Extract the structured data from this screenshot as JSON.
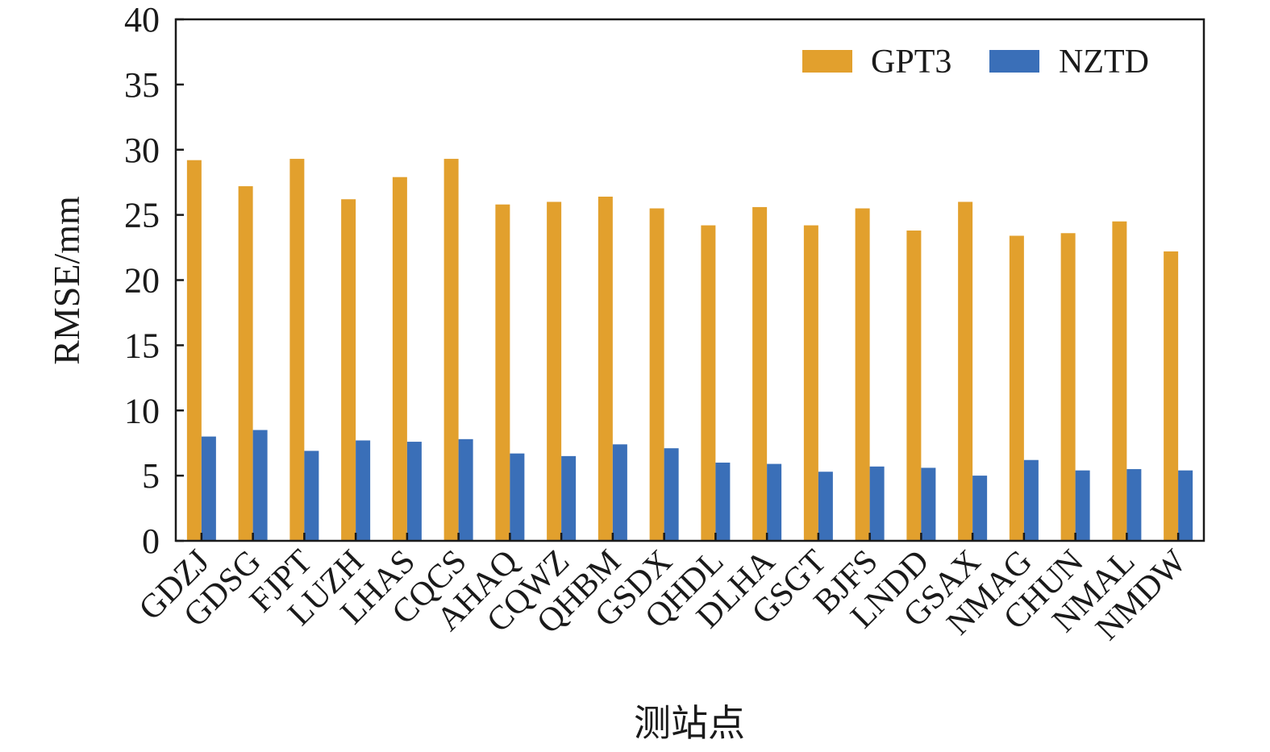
{
  "chart_data": {
    "type": "bar",
    "categories": [
      "GDZJ",
      "GDSG",
      "FJPT",
      "LUZH",
      "LHAS",
      "CQCS",
      "AHAQ",
      "CQWZ",
      "QHBM",
      "GSDX",
      "QHDL",
      "DLHA",
      "GSGT",
      "BJFS",
      "LNDD",
      "GSAX",
      "NMAG",
      "CHUN",
      "NMAL",
      "NMDW"
    ],
    "series": [
      {
        "name": "GPT3",
        "color": "#E2A02D",
        "values": [
          29.2,
          27.2,
          29.3,
          26.2,
          27.9,
          29.3,
          25.8,
          26.0,
          26.4,
          25.5,
          24.2,
          25.6,
          24.2,
          25.5,
          23.8,
          26.0,
          23.4,
          23.6,
          24.5,
          22.2
        ]
      },
      {
        "name": "NZTD",
        "color": "#3A6FB8",
        "values": [
          8.0,
          8.5,
          6.9,
          7.7,
          7.6,
          7.8,
          6.7,
          6.5,
          7.4,
          7.1,
          6.0,
          5.9,
          5.3,
          5.7,
          5.6,
          5.0,
          6.2,
          5.4,
          5.5,
          5.4
        ]
      }
    ],
    "title": "",
    "xlabel": "测站点",
    "ylabel": "RMSE/mm",
    "ylim": [
      0,
      40
    ],
    "yticks": [
      "0",
      "5",
      "10",
      "15",
      "20",
      "25",
      "30",
      "35",
      "40"
    ],
    "grid": false,
    "legend_position": "top-right"
  }
}
